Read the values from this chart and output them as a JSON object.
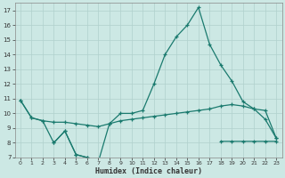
{
  "x": [
    0,
    1,
    2,
    3,
    4,
    5,
    6,
    7,
    8,
    9,
    10,
    11,
    12,
    13,
    14,
    15,
    16,
    17,
    18,
    19,
    20,
    21,
    22,
    23
  ],
  "line_main": [
    10.9,
    9.7,
    9.5,
    8.0,
    8.8,
    7.2,
    7.0,
    6.7,
    9.3,
    10.0,
    10.0,
    10.2,
    12.0,
    14.0,
    15.2,
    16.0,
    17.2,
    14.7,
    13.3,
    12.2,
    10.8,
    10.3,
    10.2,
    8.3
  ],
  "line_mid": [
    10.9,
    9.7,
    9.5,
    9.4,
    9.4,
    9.3,
    9.2,
    9.1,
    9.3,
    9.5,
    9.6,
    9.7,
    9.8,
    9.9,
    10.0,
    10.1,
    10.2,
    10.3,
    10.5,
    10.6,
    10.5,
    10.3,
    9.6,
    8.3
  ],
  "line_low": [
    null,
    null,
    null,
    8.0,
    8.8,
    7.2,
    7.0,
    6.7,
    null,
    null,
    null,
    null,
    null,
    null,
    null,
    null,
    null,
    null,
    8.1,
    8.1,
    8.1,
    8.1,
    8.1,
    8.1
  ],
  "color": "#1a7a6e",
  "bg_color": "#cce8e4",
  "grid_color": "#b0d0cc",
  "xlabel": "Humidex (Indice chaleur)",
  "ylim": [
    7,
    17.5
  ],
  "xlim": [
    -0.5,
    23.5
  ],
  "yticks": [
    7,
    8,
    9,
    10,
    11,
    12,
    13,
    14,
    15,
    16,
    17
  ],
  "xticks": [
    0,
    1,
    2,
    3,
    4,
    5,
    6,
    7,
    8,
    9,
    10,
    11,
    12,
    13,
    14,
    15,
    16,
    17,
    18,
    19,
    20,
    21,
    22,
    23
  ]
}
